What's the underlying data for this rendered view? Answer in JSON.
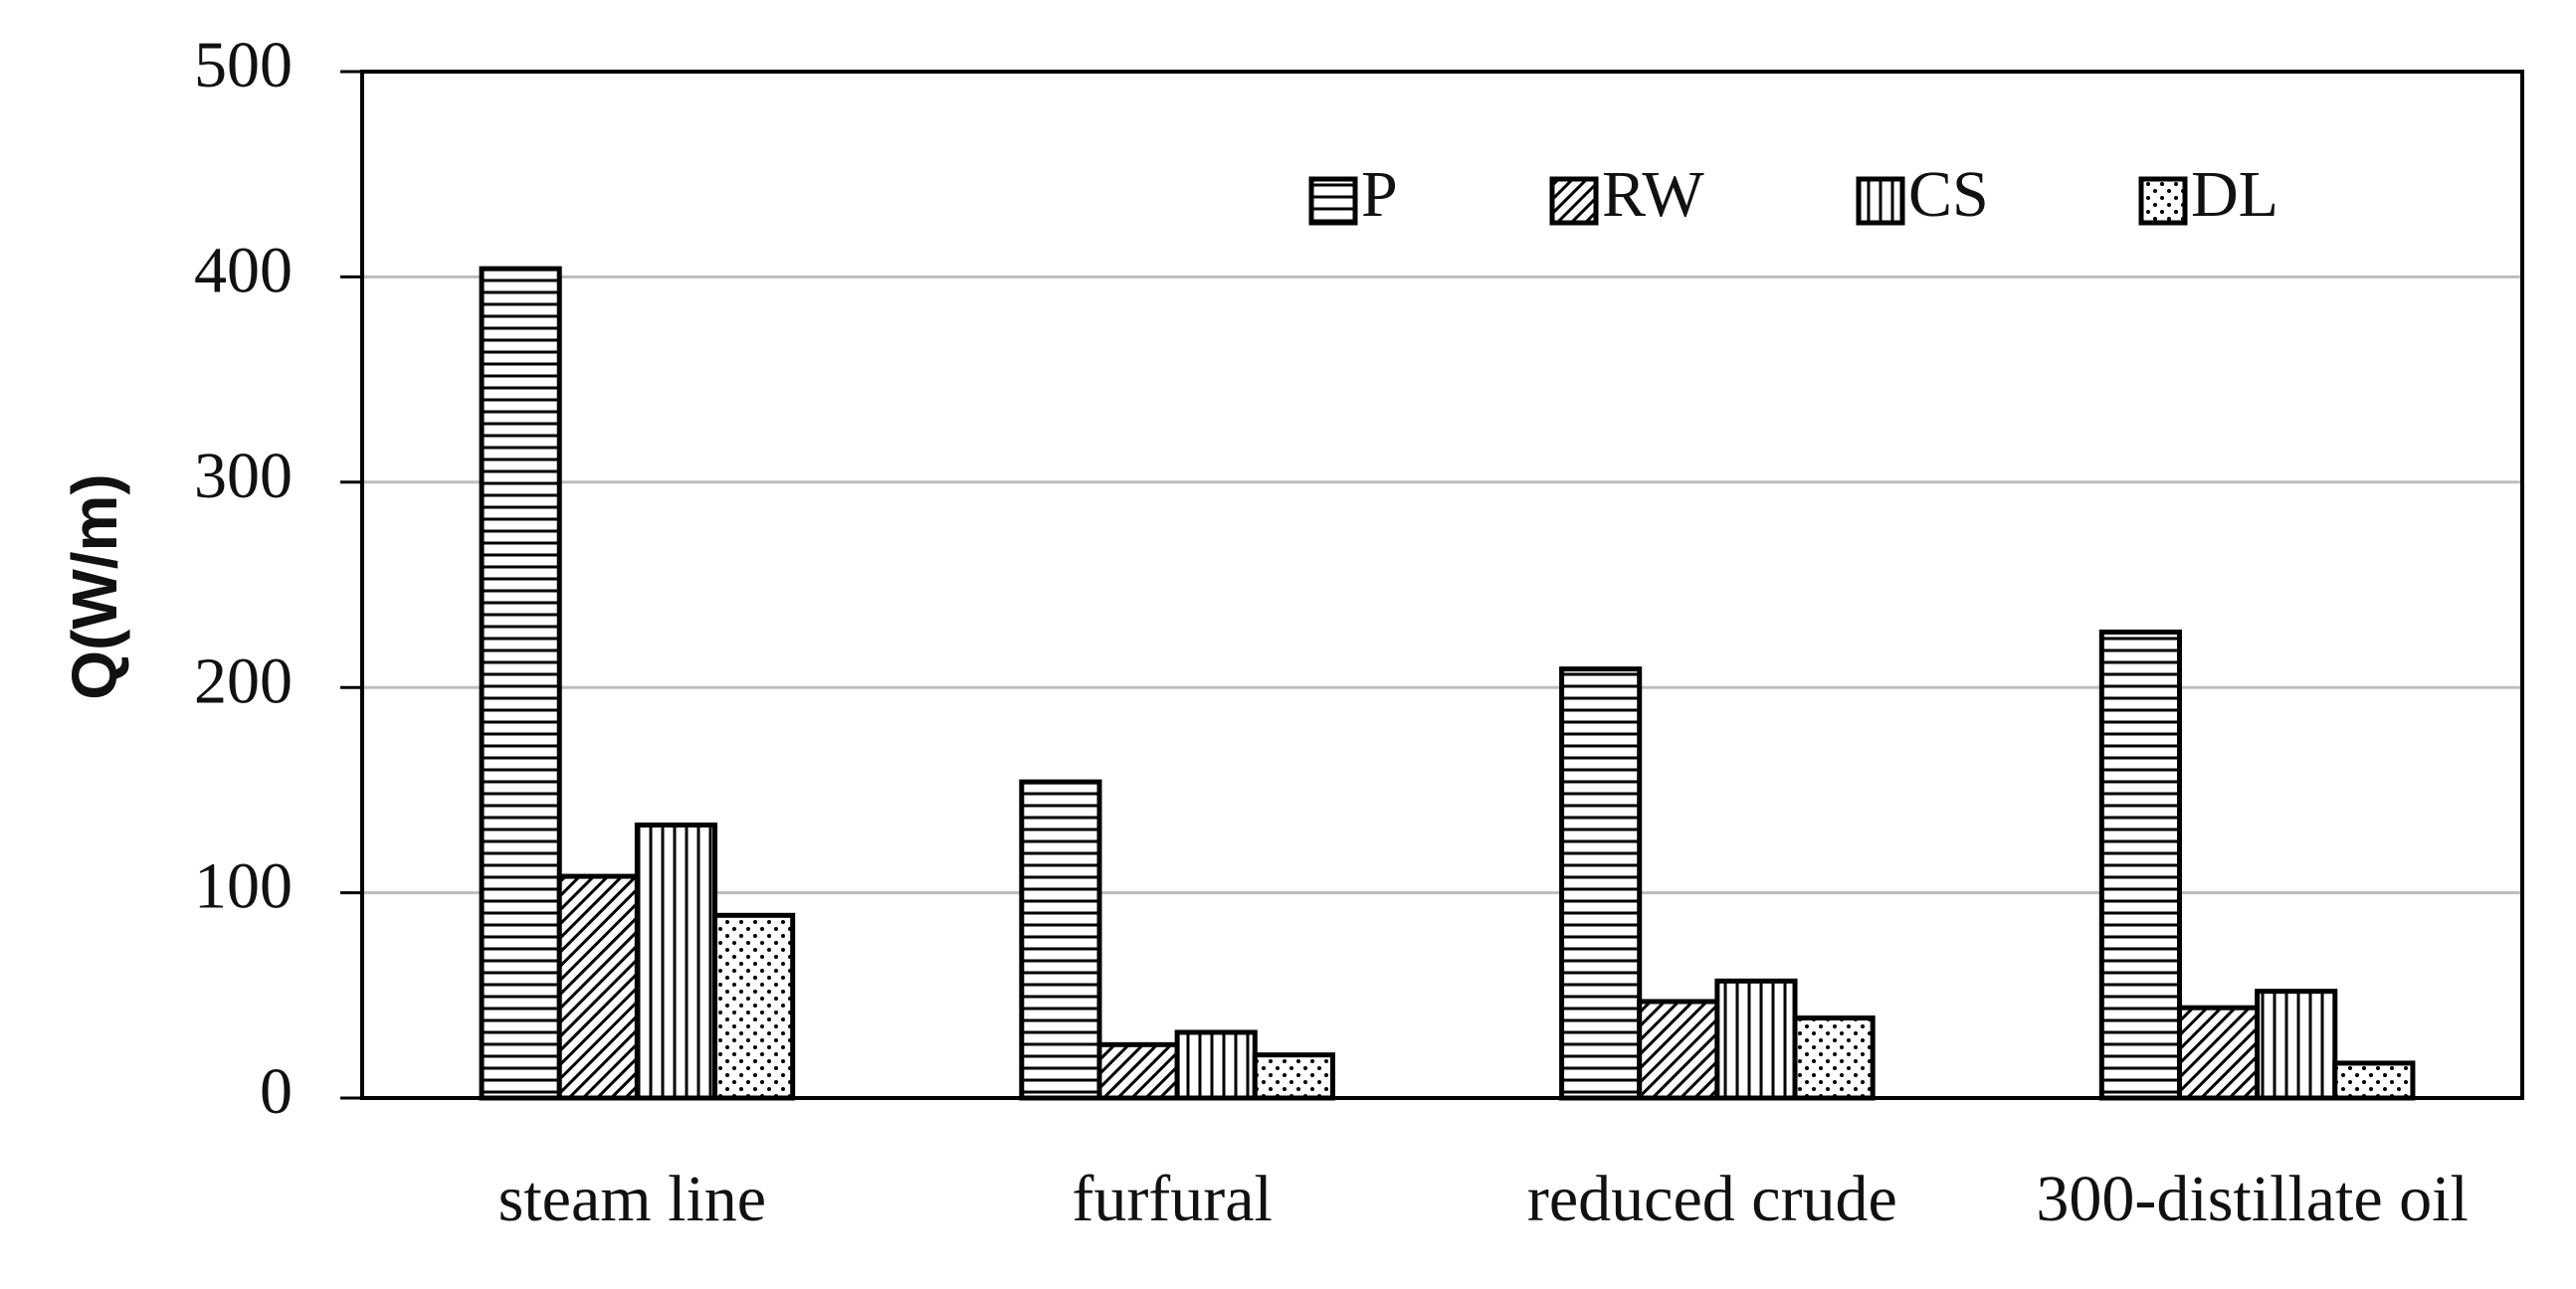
{
  "chart_data": {
    "type": "bar",
    "y_label": "Q(W/m)",
    "categories": [
      "steam line",
      "furfural",
      "reduced crude",
      "300-distillate oil"
    ],
    "series": [
      {
        "name": "P",
        "color": "#000000",
        "pattern": "horizontal",
        "values": [
          404,
          154,
          209,
          227
        ]
      },
      {
        "name": "RW",
        "color": "#000000",
        "pattern": "diagonal",
        "values": [
          108,
          26,
          47,
          44
        ]
      },
      {
        "name": "CS",
        "color": "#000000",
        "pattern": "vertical",
        "values": [
          133,
          32,
          57,
          52
        ]
      },
      {
        "name": "DL",
        "color": "#000000",
        "pattern": "dots",
        "values": [
          89,
          21,
          39,
          17
        ]
      }
    ],
    "ylim": [
      0,
      500
    ],
    "yticks": [
      0,
      100,
      200,
      300,
      400,
      500
    ],
    "grid": true,
    "legend": "top-right"
  }
}
